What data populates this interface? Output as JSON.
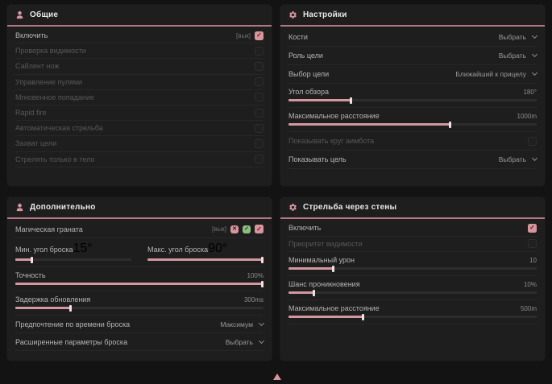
{
  "colors": {
    "accent": "#d9949c",
    "green_badge": "#8bc17f",
    "header_line": "#b27780"
  },
  "footer": {
    "arrow_icon": "scroll-up"
  },
  "panels": [
    {
      "id": "general",
      "title": "Общие",
      "icon": "person-icon",
      "rows": [
        {
          "type": "checkbox",
          "label": "Включить",
          "hint": "[вык]",
          "checked": true,
          "dim": false
        },
        {
          "type": "checkbox",
          "label": "Проверка видимости",
          "checked": false,
          "dim": true
        },
        {
          "type": "checkbox",
          "label": "Сайлент нож",
          "checked": false,
          "dim": true
        },
        {
          "type": "checkbox",
          "label": "Управление пулями",
          "checked": false,
          "dim": true
        },
        {
          "type": "checkbox",
          "label": "Мгновенное попадание",
          "checked": false,
          "dim": true
        },
        {
          "type": "checkbox",
          "label": "Rapid fire",
          "checked": false,
          "dim": true
        },
        {
          "type": "checkbox",
          "label": "Автоматическая стрельба",
          "checked": false,
          "dim": true
        },
        {
          "type": "checkbox",
          "label": "Захват цели",
          "checked": false,
          "dim": true
        },
        {
          "type": "checkbox",
          "label": "Стрелять только в тело",
          "checked": false,
          "dim": true
        }
      ]
    },
    {
      "id": "settings",
      "title": "Настройки",
      "icon": "gear-icon",
      "rows": [
        {
          "type": "select",
          "label": "Кости",
          "value": "Выбрать"
        },
        {
          "type": "select",
          "label": "Роль цели",
          "value": "Выбрать"
        },
        {
          "type": "select",
          "label": "Выбор цели",
          "value": "Ближайший к прицелу"
        },
        {
          "type": "slider",
          "label": "Угол обзора",
          "value": "180°",
          "fill": 25
        },
        {
          "type": "slider",
          "label": "Максимальное расстояние",
          "value": "1000m",
          "fill": 65
        },
        {
          "type": "checkbox",
          "label": "Показывать круг аимбота",
          "checked": false,
          "dim": true
        },
        {
          "type": "select",
          "label": "Показывать цель",
          "value": "Выбрать"
        }
      ]
    },
    {
      "id": "additional",
      "title": "Дополнительно",
      "icon": "person-icon",
      "rows": [
        {
          "type": "checkbox",
          "label": "Магическая граната",
          "hint": "[вык]",
          "badges": true,
          "checked": true,
          "dim": false
        },
        {
          "type": "slider-pair",
          "sliders": [
            {
              "label": "Мин. угол броска",
              "value": "15°",
              "fill": 14
            },
            {
              "label": "Макс. угол броска",
              "value": "90°",
              "fill": 100
            }
          ]
        },
        {
          "type": "slider",
          "label": "Точность",
          "value": "100%",
          "fill": 100
        },
        {
          "type": "slider",
          "label": "Задержка обновления",
          "value": "300ms",
          "fill": 22
        },
        {
          "type": "select",
          "label": "Предпочтение по времени броска",
          "value": "Максимум"
        },
        {
          "type": "select",
          "label": "Расширенные параметры броска",
          "value": "Выбрать"
        }
      ]
    },
    {
      "id": "wallbang",
      "title": "Стрельба через стены",
      "icon": "gear-icon",
      "rows": [
        {
          "type": "checkbox",
          "label": "Включить",
          "checked": true,
          "dim": false
        },
        {
          "type": "checkbox",
          "label": "Приоритет видимости",
          "checked": false,
          "dim": true
        },
        {
          "type": "slider",
          "label": "Минимальный урон",
          "value": "10",
          "fill": 18
        },
        {
          "type": "slider",
          "label": "Шанс проникновения",
          "value": "10%",
          "fill": 10
        },
        {
          "type": "slider",
          "label": "Максимальное расстояние",
          "value": "500m",
          "fill": 30
        }
      ]
    }
  ]
}
